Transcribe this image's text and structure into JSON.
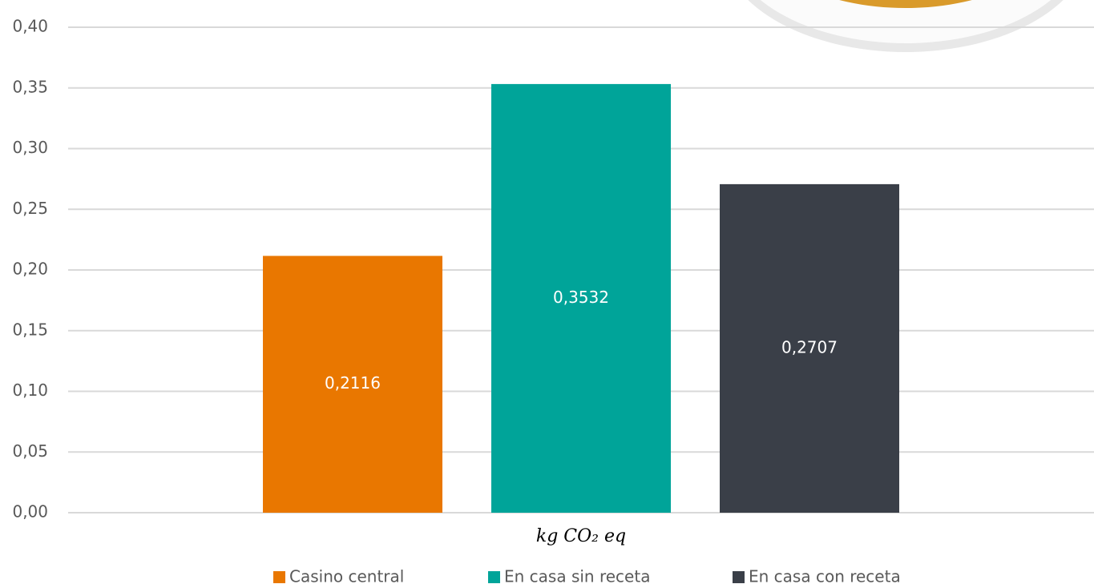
{
  "chart_data": {
    "type": "bar",
    "categories": [
      "kg CO₂ eq"
    ],
    "series": [
      {
        "name": "Casino central",
        "color": "#e97700",
        "values": [
          0.2116
        ],
        "value_labels": [
          "0,2116"
        ]
      },
      {
        "name": "En casa sin receta",
        "color": "#00a499",
        "values": [
          0.3532
        ],
        "value_labels": [
          "0,3532"
        ]
      },
      {
        "name": "En casa con receta",
        "color": "#3a3f48",
        "values": [
          0.2707
        ],
        "value_labels": [
          "0,2707"
        ]
      }
    ],
    "ylim": [
      0,
      0.4
    ],
    "yticks": [
      {
        "value": 0,
        "label": "0,00"
      },
      {
        "value": 0.05,
        "label": "0,05"
      },
      {
        "value": 0.1,
        "label": "0,10"
      },
      {
        "value": 0.15,
        "label": "0,15"
      },
      {
        "value": 0.2,
        "label": "0,20"
      },
      {
        "value": 0.25,
        "label": "0,25"
      },
      {
        "value": 0.3,
        "label": "0,30"
      },
      {
        "value": 0.35,
        "label": "0,35"
      },
      {
        "value": 0.4,
        "label": "0,40"
      }
    ],
    "grid": true,
    "legend": "bottom"
  }
}
